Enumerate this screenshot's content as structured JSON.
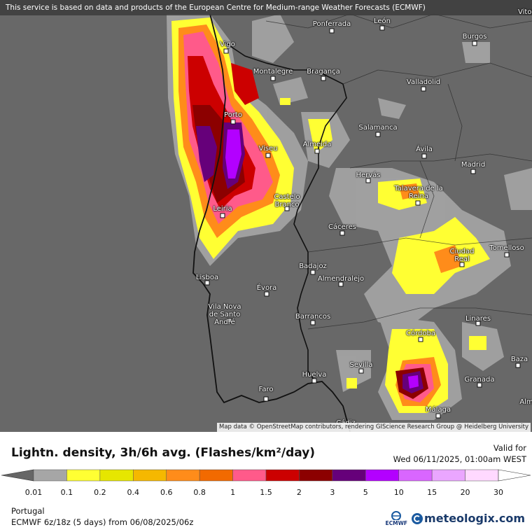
{
  "banner": "This service is based on data and products of the European Centre for Medium-range Weather Forecasts (ECMWF)",
  "corner_label": "Vitoria-G",
  "attribution": "Map data © OpenStreetMap contributors, rendering GIScience Research Group @ Heidelberg University",
  "cities": [
    {
      "name": "Ponferrada"
    },
    {
      "name": "León"
    },
    {
      "name": "Burgos"
    },
    {
      "name": "Vigo"
    },
    {
      "name": "Montalegre"
    },
    {
      "name": "Bragança"
    },
    {
      "name": "Valladolid"
    },
    {
      "name": "Porto"
    },
    {
      "name": "Salamanca"
    },
    {
      "name": "Viseu"
    },
    {
      "name": "Almeida"
    },
    {
      "name": "Ávila"
    },
    {
      "name": "Madrid"
    },
    {
      "name": "Hervás"
    },
    {
      "name": "Talavera de la Reina"
    },
    {
      "name": "Castelo Branco"
    },
    {
      "name": "Leiria"
    },
    {
      "name": "Cáceres"
    },
    {
      "name": "Tomelloso"
    },
    {
      "name": "Ciudad Real"
    },
    {
      "name": "Badajoz"
    },
    {
      "name": "Almendralejo"
    },
    {
      "name": "Lisboa"
    },
    {
      "name": "Évora"
    },
    {
      "name": "Vila Nova de Santo André"
    },
    {
      "name": "Barrancos"
    },
    {
      "name": "Linares"
    },
    {
      "name": "Córdoba"
    },
    {
      "name": "Baza"
    },
    {
      "name": "Sevilla"
    },
    {
      "name": "Huelva"
    },
    {
      "name": "Granada"
    },
    {
      "name": "Faro"
    },
    {
      "name": "Málaga"
    },
    {
      "name": "Cádiz"
    },
    {
      "name": "Alm"
    }
  ],
  "legend": {
    "title": "Lightn. density, 3h/6h avg. (Flashes/km²/day)",
    "valid_label": "Valid for",
    "valid_time": "Wed 06/11/2025, 01:00am WEST",
    "ticks": [
      "0.01",
      "0.1",
      "0.2",
      "0.4",
      "0.6",
      "0.8",
      "1",
      "1.5",
      "2",
      "3",
      "5",
      "10",
      "15",
      "20",
      "30"
    ],
    "colors": [
      "#a6a6a6",
      "#ffff33",
      "#e6e600",
      "#f5b800",
      "#ff8c1a",
      "#f26a00",
      "#ff5a8a",
      "#cc0000",
      "#8c0000",
      "#66007a",
      "#b300ff",
      "#d966ff",
      "#eaa6ff",
      "#ffd9ff"
    ]
  },
  "region": "Portugal",
  "run_info": "ECMWF 6z/18z (5 days) from 06/08/2025/06z",
  "logos": {
    "ecmwf": "ECMWF",
    "meteologix": "meteologix.com"
  }
}
